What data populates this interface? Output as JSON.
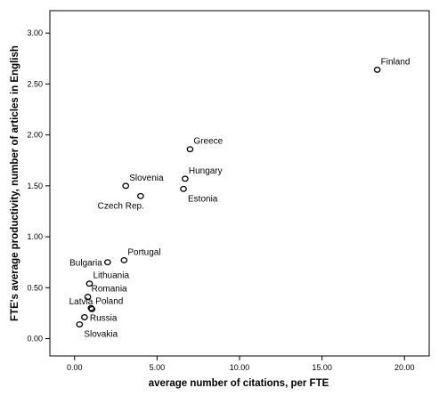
{
  "chart_data": {
    "type": "scatter",
    "title": "",
    "xlabel": "average number of citations, per FTE",
    "ylabel": "FTE's average productivity, number of articles in English",
    "xlim": [
      -1.5,
      21.5
    ],
    "ylim": [
      -0.17,
      3.22
    ],
    "x_ticks": [
      {
        "value": 0,
        "label": "0.00"
      },
      {
        "value": 5,
        "label": "5.00"
      },
      {
        "value": 10,
        "label": "10.00"
      },
      {
        "value": 15,
        "label": "15.00"
      },
      {
        "value": 20,
        "label": "20.00"
      }
    ],
    "y_ticks": [
      {
        "value": 0,
        "label": "0.00"
      },
      {
        "value": 0.5,
        "label": "0.50"
      },
      {
        "value": 1,
        "label": "1.00"
      },
      {
        "value": 1.5,
        "label": "1.50"
      },
      {
        "value": 2,
        "label": "2.00"
      },
      {
        "value": 2.5,
        "label": "2.50"
      },
      {
        "value": 3,
        "label": "3.00"
      }
    ],
    "grid": false,
    "marker_color": "#000000",
    "points": [
      {
        "label": "Finland",
        "x": 18.35,
        "y": 2.64,
        "label_anchor": "above-right"
      },
      {
        "label": "Greece",
        "x": 7.0,
        "y": 1.86,
        "label_anchor": "above-right"
      },
      {
        "label": "Hungary",
        "x": 6.7,
        "y": 1.57,
        "label_anchor": "above-right"
      },
      {
        "label": "Slovenia",
        "x": 3.1,
        "y": 1.5,
        "label_anchor": "above-right"
      },
      {
        "label": "Estonia",
        "x": 6.6,
        "y": 1.47,
        "label_anchor": "below-right"
      },
      {
        "label": "Czech Rep.",
        "x": 4.0,
        "y": 1.4,
        "label_anchor": "below-left"
      },
      {
        "label": "Portugal",
        "x": 3.0,
        "y": 0.77,
        "label_anchor": "above-right"
      },
      {
        "label": "Bulgaria",
        "x": 2.0,
        "y": 0.75,
        "label_anchor": "left"
      },
      {
        "label": "Lithuania",
        "x": 0.9,
        "y": 0.54,
        "label_anchor": "above-right"
      },
      {
        "label": "Romania",
        "x": 0.8,
        "y": 0.41,
        "label_anchor": "above-right"
      },
      {
        "label": "Latvia",
        "x": 1.0,
        "y": 0.3,
        "label_anchor": "above-left"
      },
      {
        "label": "Poland",
        "x": 1.05,
        "y": 0.29,
        "label_anchor": "above-right"
      },
      {
        "label": "Russia",
        "x": 0.6,
        "y": 0.21,
        "label_anchor": "right"
      },
      {
        "label": "Slovakia",
        "x": 0.3,
        "y": 0.14,
        "label_anchor": "below-right"
      }
    ]
  }
}
